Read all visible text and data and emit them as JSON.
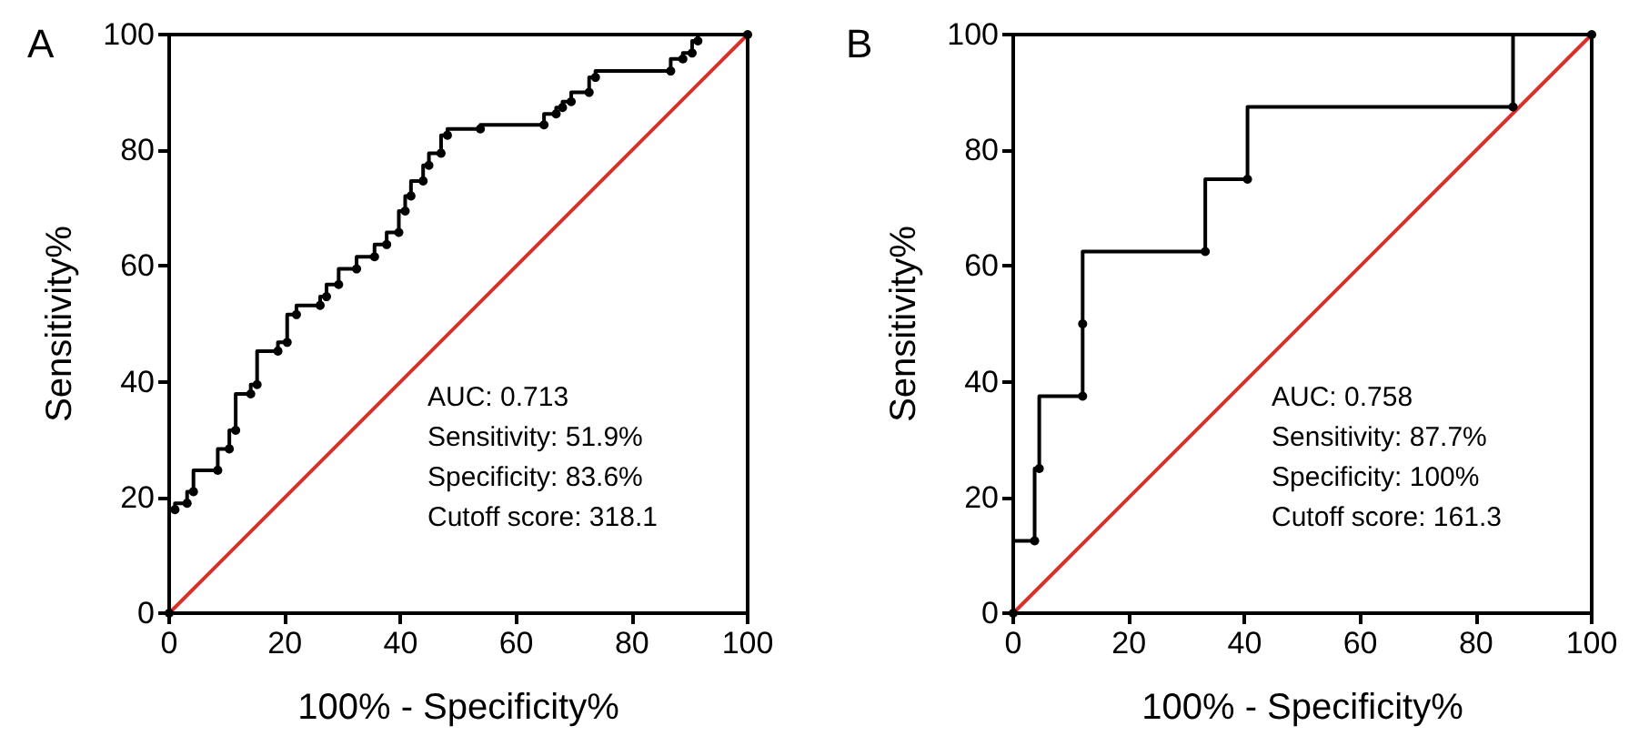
{
  "chart_data": [
    {
      "type": "step",
      "title": "A",
      "xlabel": "100% - Specificity%",
      "ylabel": "Sensitivity%",
      "xlim": [
        0,
        100
      ],
      "ylim": [
        0,
        100
      ],
      "xticks": [
        0,
        20,
        40,
        60,
        80,
        100
      ],
      "yticks": [
        0,
        20,
        40,
        60,
        80,
        100
      ],
      "grid": false,
      "marker": "circle",
      "annotations": [
        "AUC: 0.713",
        "Sensitivity: 51.9%",
        "Specificity: 83.6%",
        "Cutoff score: 318.1"
      ],
      "series": [
        {
          "color": "#000000",
          "x": [
            0,
            1,
            3.1,
            4.2,
            8.4,
            10.4,
            11.5,
            14.1,
            15.2,
            18.8,
            20.4,
            22,
            26.1,
            27.2,
            29.3,
            32.4,
            35.5,
            37.6,
            39.7,
            40.8,
            41.8,
            43.9,
            44.9,
            47,
            48.1,
            53.8,
            64.8,
            66.9,
            68,
            69.5,
            72.6,
            73.7,
            86.7,
            88.8,
            90.4,
            91.4,
            100
          ],
          "values": [
            0,
            17.9,
            19,
            21,
            24.7,
            28.4,
            31.6,
            37.9,
            39.5,
            45.3,
            46.8,
            51.6,
            53.2,
            54.7,
            56.8,
            59.5,
            61.6,
            63.7,
            65.8,
            69.5,
            72.1,
            74.7,
            77.4,
            79.5,
            82.6,
            83.7,
            84.4,
            86.3,
            87.4,
            88.4,
            90,
            92.6,
            93.7,
            95.8,
            96.8,
            98.9,
            100
          ]
        },
        {
          "type": "line",
          "marker": "none",
          "color": "#d9302a",
          "x": [
            0,
            100
          ],
          "values": [
            0,
            100
          ]
        }
      ]
    },
    {
      "type": "step",
      "title": "B",
      "xlabel": "100% - Specificity%",
      "ylabel": "Sensitivity%",
      "xlim": [
        0,
        100
      ],
      "ylim": [
        0,
        100
      ],
      "xticks": [
        0,
        20,
        40,
        60,
        80,
        100
      ],
      "yticks": [
        0,
        20,
        40,
        60,
        80,
        100
      ],
      "grid": false,
      "marker": "circle",
      "annotations": [
        "AUC: 0.758",
        "Sensitivity: 87.7%",
        "Specificity: 100%",
        "Cutoff score: 161.3"
      ],
      "series": [
        {
          "color": "#000000",
          "x": [
            0,
            3.7,
            4.5,
            12,
            12,
            33.2,
            40.5,
            86.4,
            100
          ],
          "values": [
            0,
            12.5,
            25,
            37.5,
            50,
            62.5,
            75,
            87.5,
            100
          ]
        },
        {
          "type": "line",
          "marker": "none",
          "color": "#d9302a",
          "x": [
            0,
            100
          ],
          "values": [
            0,
            100
          ]
        }
      ]
    }
  ]
}
